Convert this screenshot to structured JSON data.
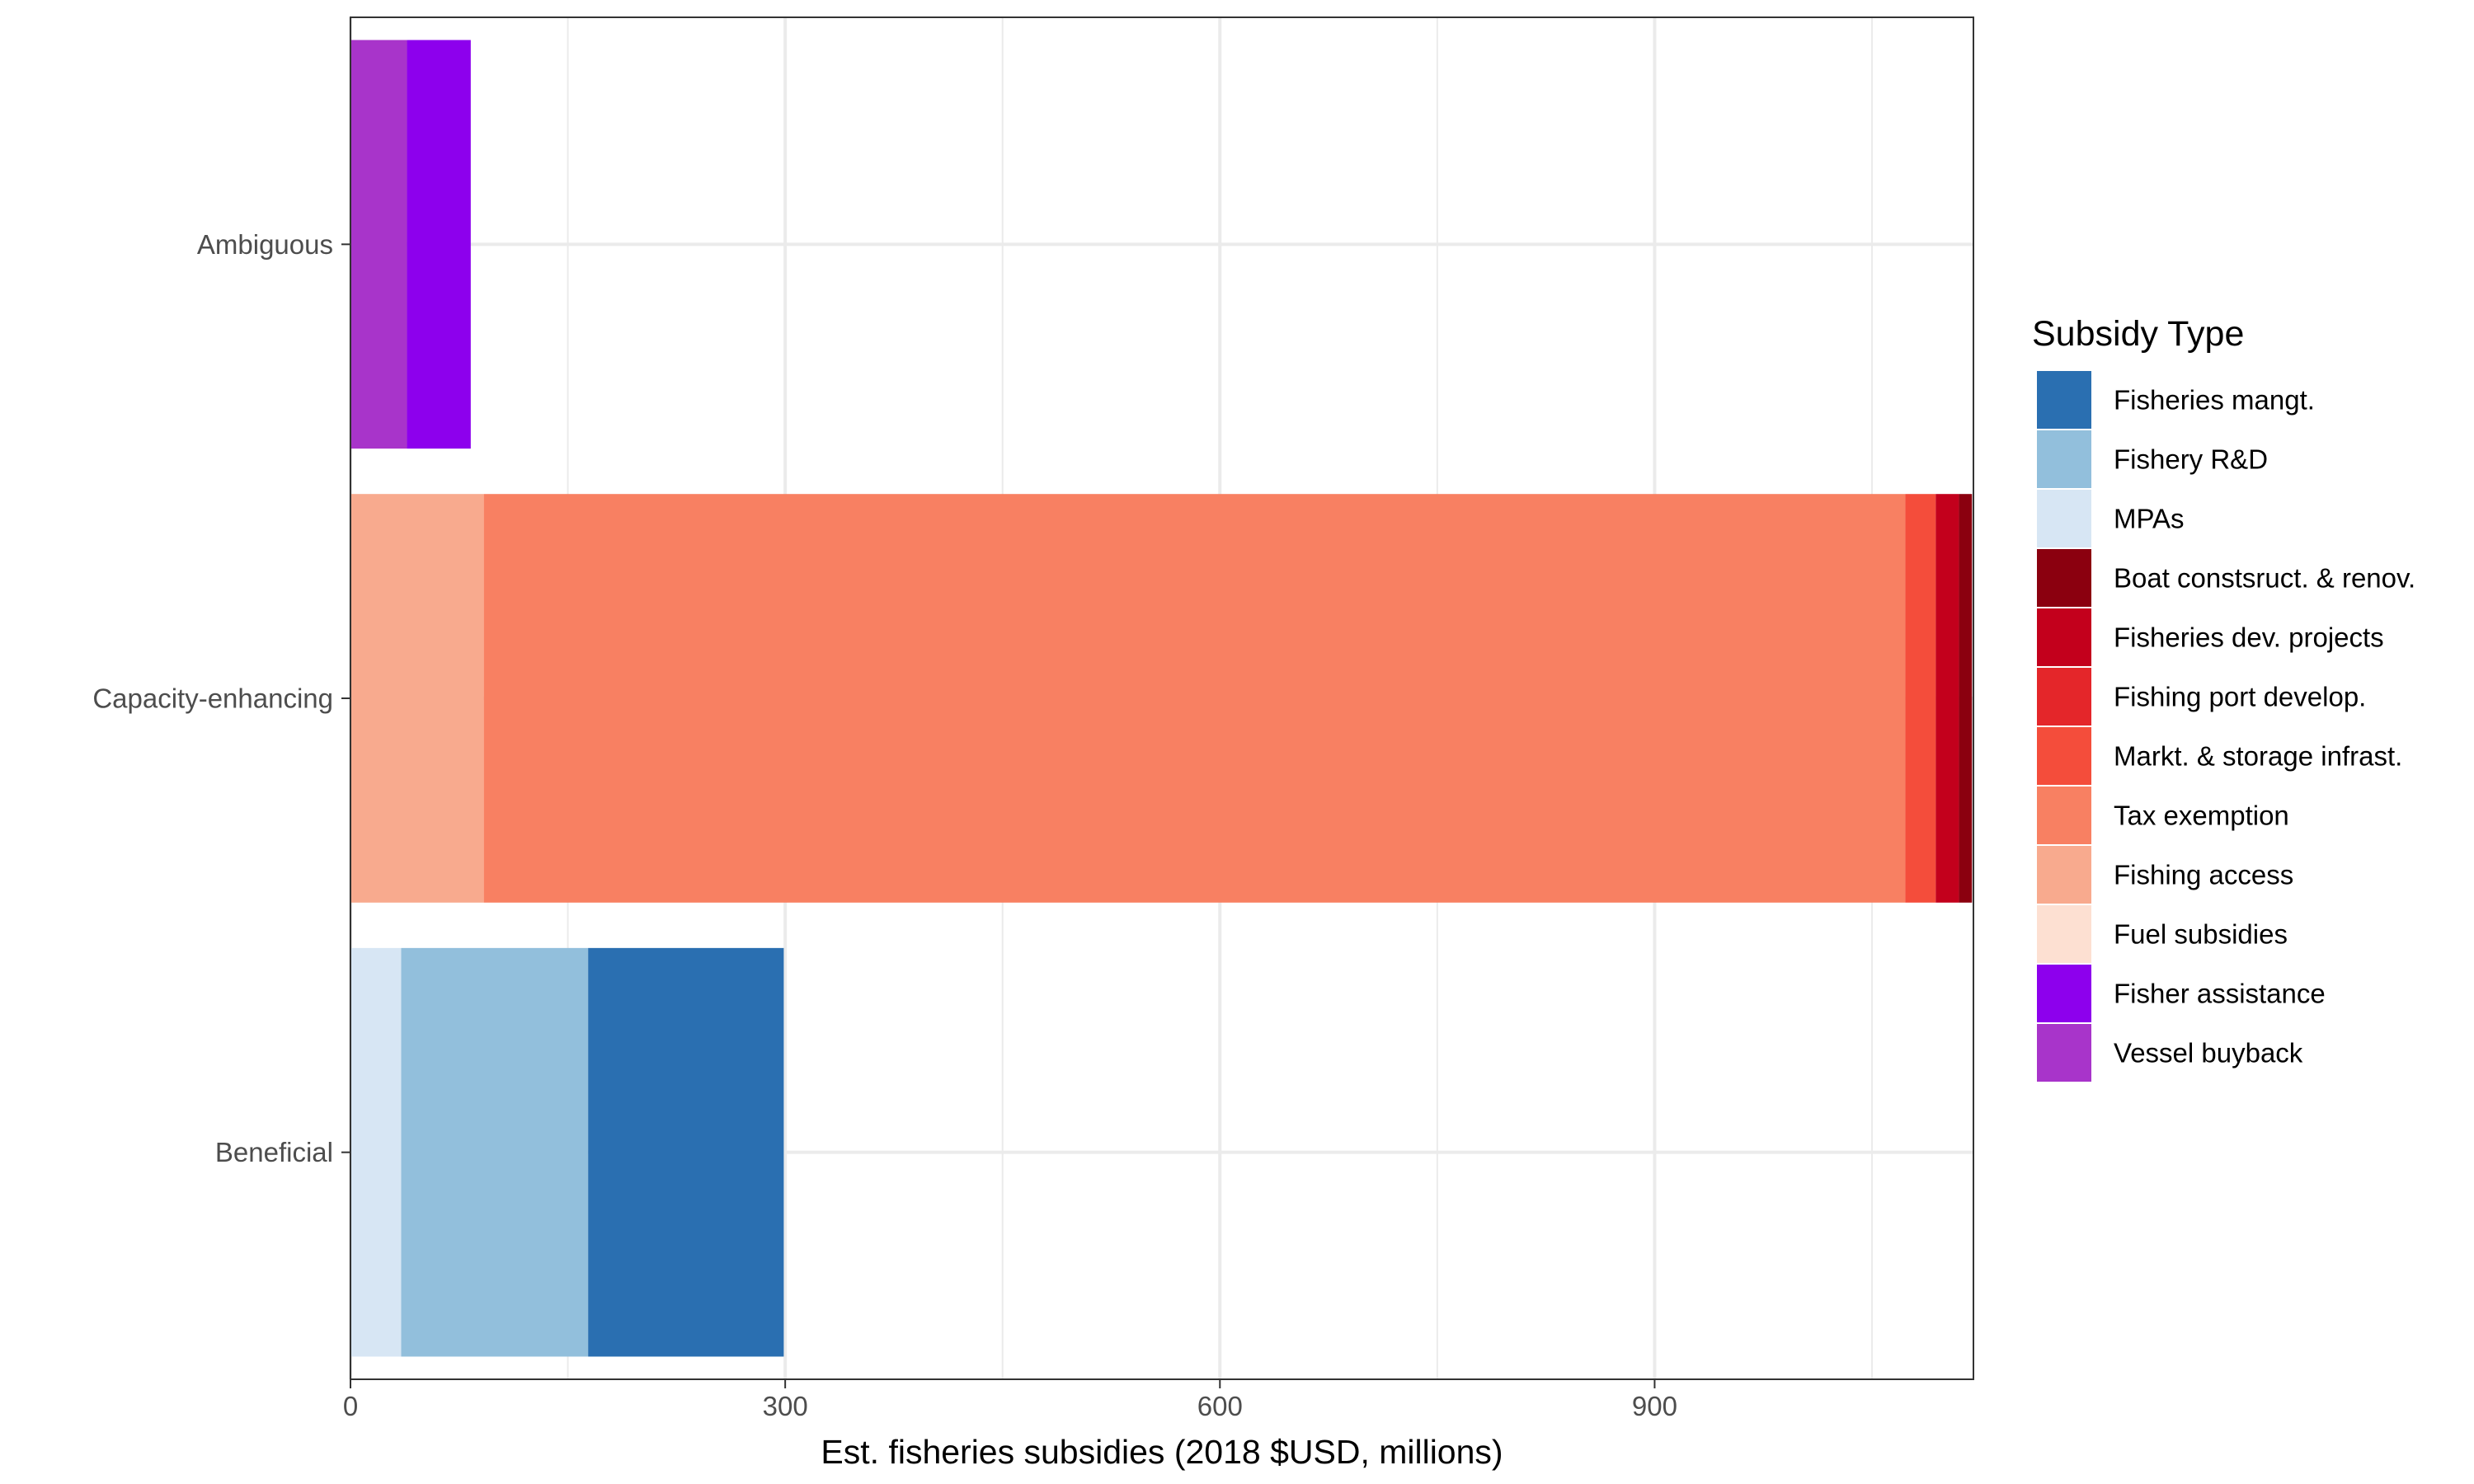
{
  "chart_data": {
    "type": "bar",
    "orientation": "horizontal",
    "stacked": true,
    "xlabel": "Est. fisheries subsidies (2018 $USD, millions)",
    "ylabel": "",
    "xlim": [
      0,
      1120
    ],
    "x_ticks": [
      0,
      300,
      600,
      900
    ],
    "x_tick_labels": [
      "0",
      "300",
      "600",
      "900"
    ],
    "grid": true,
    "legend_position": "right",
    "legend_title": "Subsidy Type",
    "categories": [
      "Ambiguous",
      "Capacity-enhancing",
      "Beneficial"
    ],
    "series": [
      {
        "name": "Fisheries mangt.",
        "color": "#2a6fb1",
        "values": [
          0,
          0,
          135
        ]
      },
      {
        "name": "Fishery R&D",
        "color": "#92bfdc",
        "values": [
          0,
          0,
          129
        ]
      },
      {
        "name": "MPAs",
        "color": "#d7e6f4",
        "values": [
          0,
          0,
          35
        ]
      },
      {
        "name": "Boat constsruct. & renov.",
        "color": "#8b000f",
        "values": [
          0,
          9,
          0
        ]
      },
      {
        "name": "Fisheries dev. projects",
        "color": "#c3001c",
        "values": [
          0,
          16,
          0
        ]
      },
      {
        "name": "Fishing port develop.",
        "color": "#e4262a",
        "values": [
          0,
          0,
          0
        ]
      },
      {
        "name": "Markt. & storage infrast.",
        "color": "#f44d3b",
        "values": [
          0,
          21,
          0
        ]
      },
      {
        "name": "Tax exemption",
        "color": "#f88062",
        "values": [
          0,
          981,
          0
        ]
      },
      {
        "name": "Fishing access",
        "color": "#f8aa8e",
        "values": [
          0,
          92,
          0
        ]
      },
      {
        "name": "Fuel subsidies",
        "color": "#fde0d2",
        "values": [
          0,
          0,
          0
        ]
      },
      {
        "name": "Fisher assistance",
        "color": "#8d00ed",
        "values": [
          44,
          0,
          0
        ]
      },
      {
        "name": "Vessel buyback",
        "color": "#a834ca",
        "values": [
          39,
          0,
          0
        ]
      }
    ]
  }
}
